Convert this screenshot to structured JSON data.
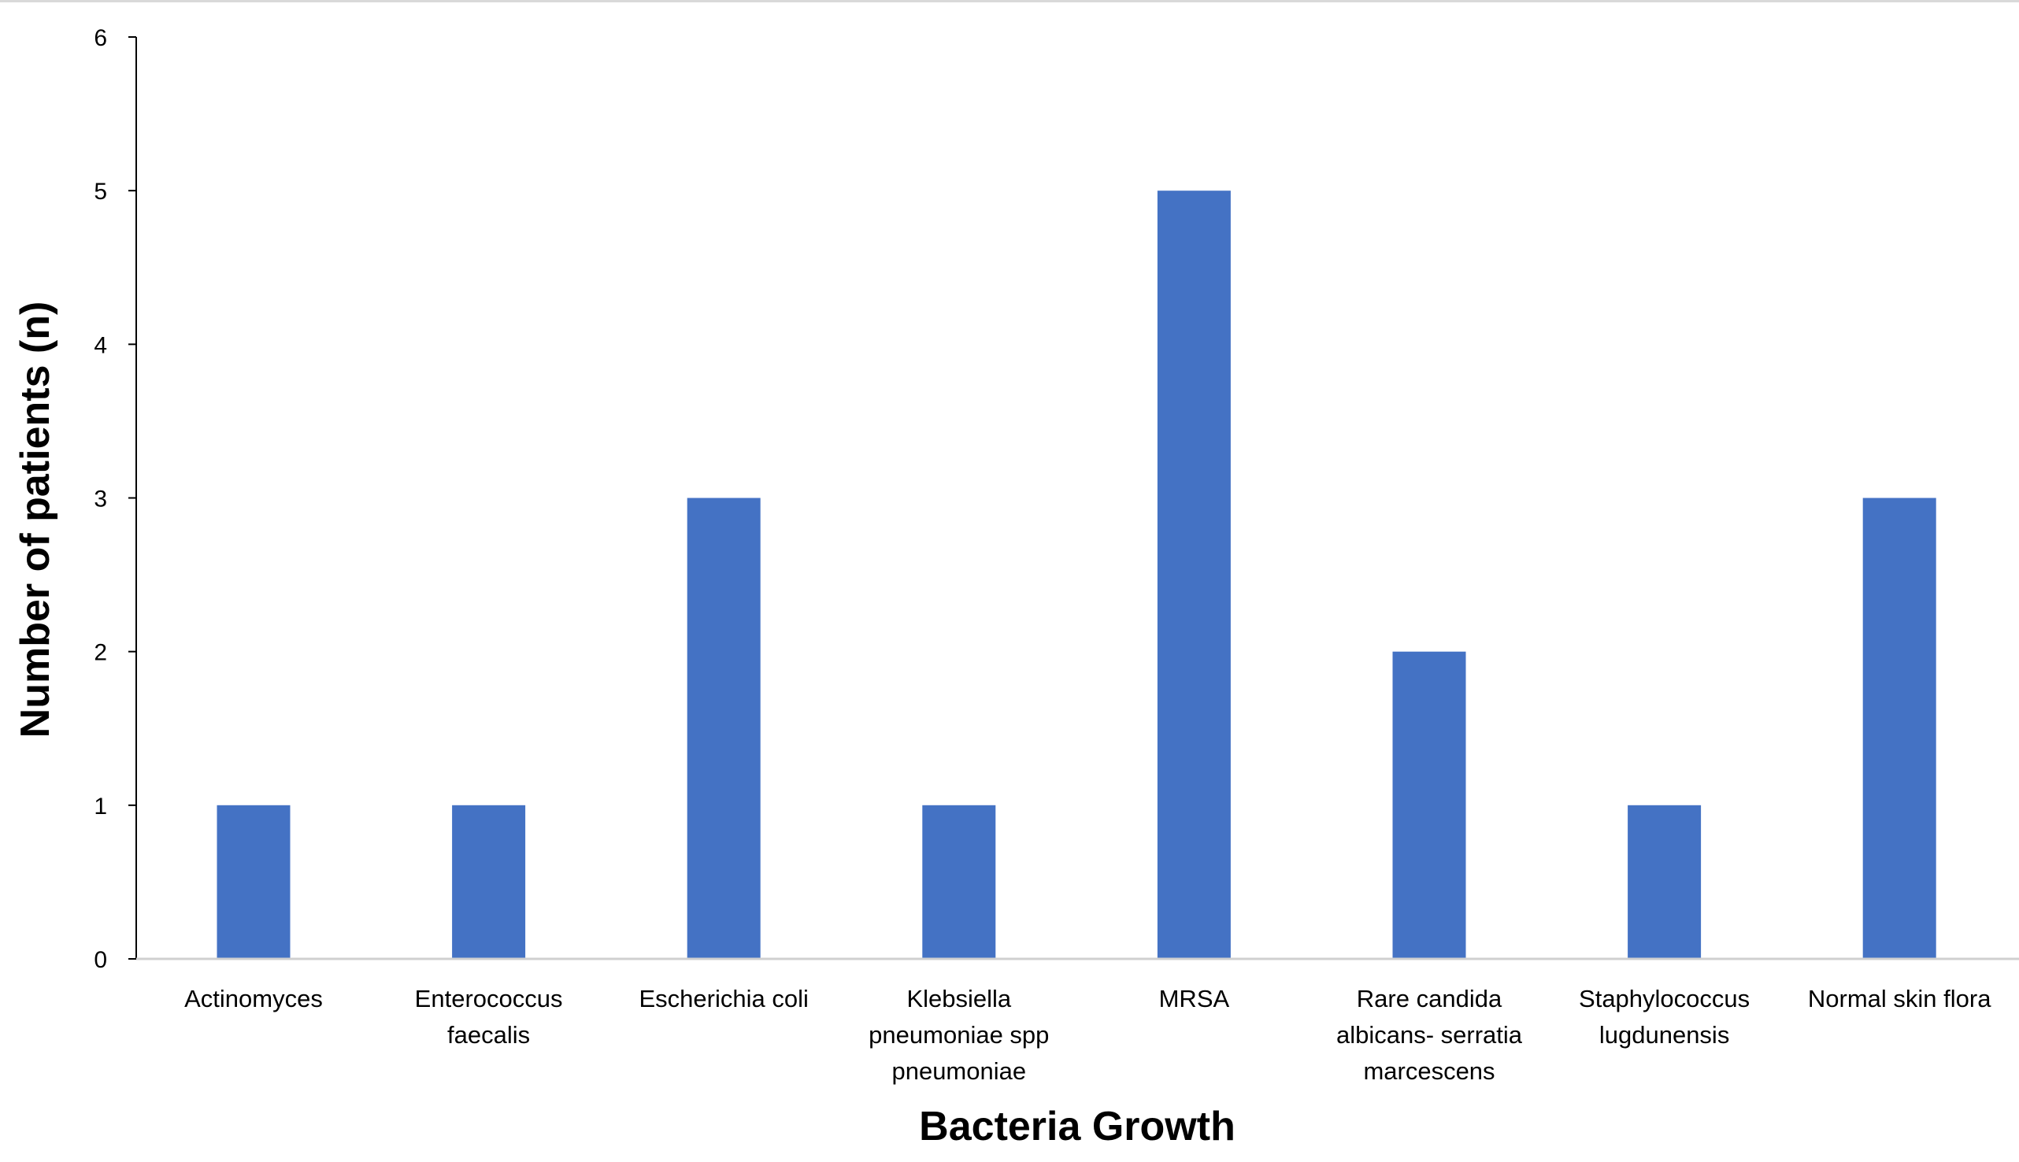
{
  "chart_data": {
    "type": "bar",
    "title": "",
    "xlabel": "Bacteria Growth",
    "ylabel": "Number of patients (n)",
    "categories": [
      [
        "Actinomyces"
      ],
      [
        "Enterococcus",
        "faecalis"
      ],
      [
        "Escherichia coli"
      ],
      [
        "Klebsiella",
        "pneumoniae spp",
        "pneumoniae"
      ],
      [
        "MRSA"
      ],
      [
        "Rare candida",
        "albicans- serratia",
        "marcescens"
      ],
      [
        "Staphylococcus",
        "lugdunensis"
      ],
      [
        "Normal skin flora"
      ]
    ],
    "values": [
      1,
      1,
      3,
      1,
      5,
      2,
      1,
      3
    ],
    "ylim": [
      0,
      6
    ],
    "yticks": [
      0,
      1,
      2,
      3,
      4,
      5,
      6
    ],
    "grid": false,
    "legend": "none",
    "bar_color": "#4472C4",
    "axis_color": "#000000"
  }
}
